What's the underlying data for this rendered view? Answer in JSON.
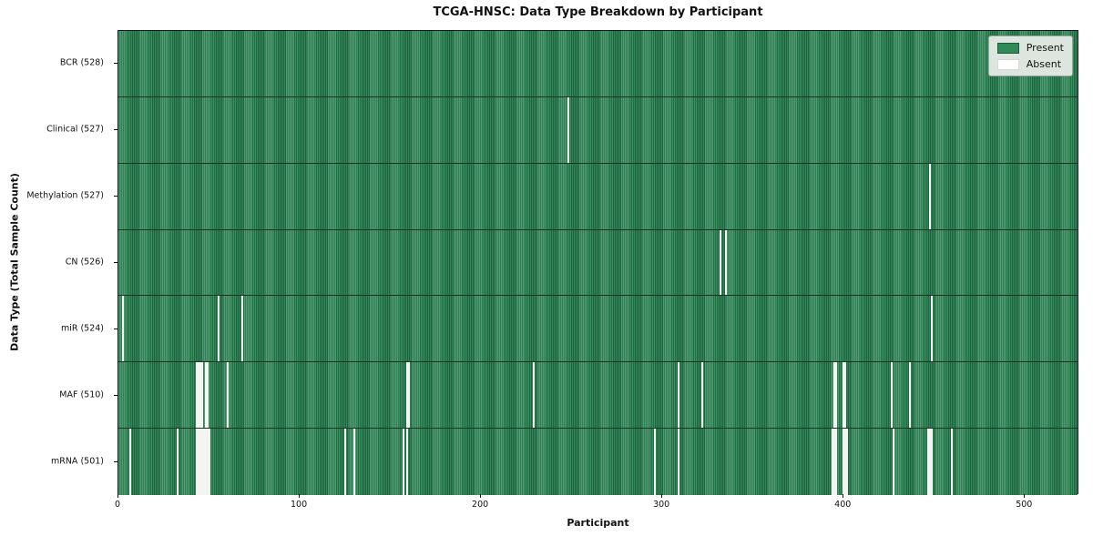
{
  "chart_data": {
    "type": "heatmap",
    "title": "TCGA-HNSC: Data Type Breakdown by Participant",
    "xlabel": "Participant",
    "ylabel": "Data Type (Total Sample Count)",
    "x_ticks": [
      0,
      100,
      200,
      300,
      400,
      500
    ],
    "xlim": [
      0,
      530
    ],
    "n_participants": 528,
    "grid": false,
    "legend": {
      "position": "upper right",
      "present_label": "Present",
      "absent_label": "Absent"
    },
    "colors": {
      "present": "#2e8b57",
      "present_dark": "#256e47",
      "absent": "#f4f4f2",
      "row_divider": "#16331f",
      "legend_bg": "#dde6de"
    },
    "rows": [
      {
        "label": "BCR (528)",
        "data_type": "BCR",
        "total": 528,
        "absent_participants": []
      },
      {
        "label": "Clinical (527)",
        "data_type": "Clinical",
        "total": 527,
        "absent_participants": [
          248
        ]
      },
      {
        "label": "Methylation (527)",
        "data_type": "Methylation",
        "total": 527,
        "absent_participants": [
          448
        ]
      },
      {
        "label": "CN (526)",
        "data_type": "CN",
        "total": 526,
        "absent_participants": [
          332,
          335
        ]
      },
      {
        "label": "miR (524)",
        "data_type": "miR",
        "total": 524,
        "absent_participants": [
          2,
          55,
          68,
          449
        ]
      },
      {
        "label": "MAF (510)",
        "data_type": "MAF",
        "total": 510,
        "absent_participants": [
          43,
          44,
          45,
          46,
          48,
          49,
          60,
          159,
          160,
          229,
          309,
          322,
          395,
          396,
          400,
          401,
          427,
          437
        ]
      },
      {
        "label": "mRNA (501)",
        "data_type": "mRNA",
        "total": 501,
        "absent_participants": [
          6,
          32,
          43,
          44,
          45,
          46,
          47,
          48,
          49,
          50,
          125,
          130,
          157,
          159,
          296,
          309,
          394,
          395,
          396,
          400,
          401,
          402,
          428,
          447,
          448,
          449,
          460
        ]
      }
    ]
  }
}
